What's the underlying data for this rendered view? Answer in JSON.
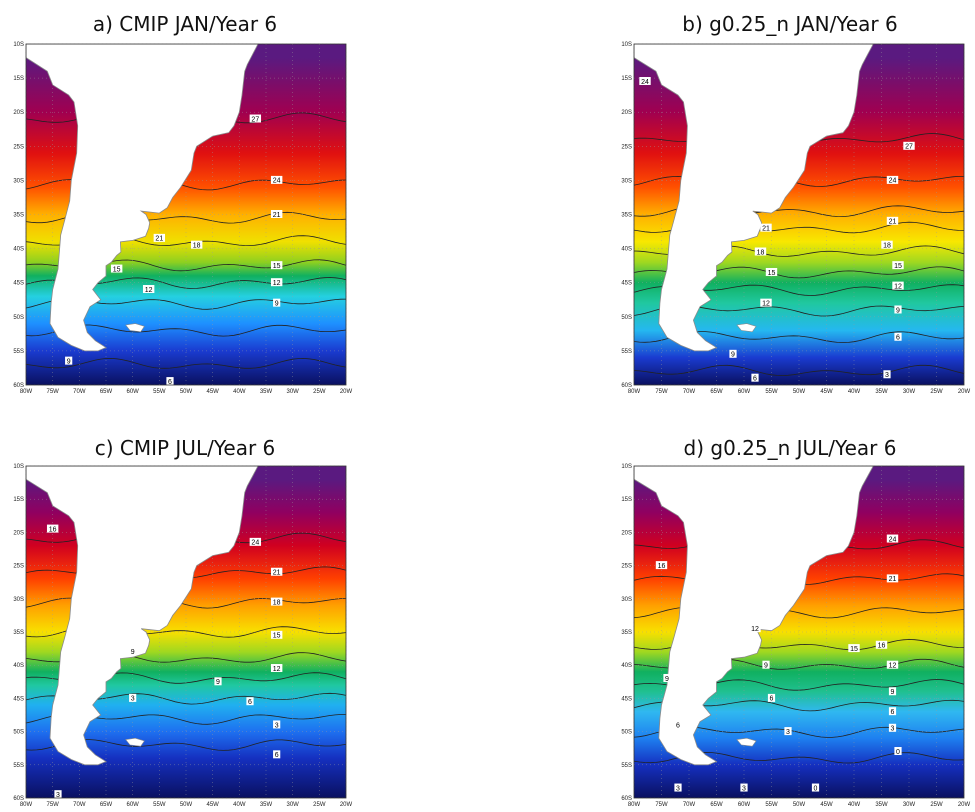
{
  "figure": {
    "panels": [
      {
        "id": "a",
        "title": "a) CMIP JAN/Year 6",
        "month": "JAN",
        "lat_range": [
          -60,
          -10
        ],
        "lon_range": [
          -80,
          -20
        ],
        "color_stops": [
          [
            -60,
            "#0a1060"
          ],
          [
            -55,
            "#1a3bd0"
          ],
          [
            -51,
            "#1e90ff"
          ],
          [
            -47,
            "#25d0e0"
          ],
          [
            -44,
            "#10b060"
          ],
          [
            -42,
            "#8ed020"
          ],
          [
            -39,
            "#f0e000"
          ],
          [
            -35,
            "#ffb000"
          ],
          [
            -31,
            "#ff5000"
          ],
          [
            -26,
            "#e01010"
          ],
          [
            -20,
            "#a00050"
          ],
          [
            -12,
            "#5a1a80"
          ]
        ],
        "contour_lats": [
          -57,
          -52,
          -48,
          -45,
          -42.5,
          -39,
          -35.5,
          -30.5,
          -21
        ],
        "contour_labels": [
          {
            "t": "6",
            "lon": -53,
            "lat": -59.5
          },
          {
            "t": "9",
            "lon": -72,
            "lat": -56.5
          },
          {
            "t": "9",
            "lon": -33,
            "lat": -48
          },
          {
            "t": "12",
            "lon": -57,
            "lat": -46
          },
          {
            "t": "12",
            "lon": -33,
            "lat": -45
          },
          {
            "t": "15",
            "lon": -63,
            "lat": -43
          },
          {
            "t": "15",
            "lon": -33,
            "lat": -42.5
          },
          {
            "t": "18",
            "lon": -48,
            "lat": -39.5
          },
          {
            "t": "21",
            "lon": -55,
            "lat": -38.5
          },
          {
            "t": "21",
            "lon": -33,
            "lat": -35
          },
          {
            "t": "24",
            "lon": -33,
            "lat": -30
          },
          {
            "t": "27",
            "lon": -37,
            "lat": -21
          }
        ]
      },
      {
        "id": "b",
        "title": "b) g0.25_n JAN/Year 6",
        "month": "JAN",
        "lat_range": [
          -60,
          -10
        ],
        "lon_range": [
          -80,
          -20
        ],
        "color_stops": [
          [
            -60,
            "#0a1060"
          ],
          [
            -56,
            "#1a3bd0"
          ],
          [
            -52,
            "#25b8f0"
          ],
          [
            -48,
            "#20c8a0"
          ],
          [
            -45,
            "#10b060"
          ],
          [
            -42,
            "#a0d820"
          ],
          [
            -39,
            "#f8e800"
          ],
          [
            -35,
            "#ffb000"
          ],
          [
            -31,
            "#ff5000"
          ],
          [
            -26,
            "#e01010"
          ],
          [
            -20,
            "#a00050"
          ],
          [
            -12,
            "#5a1a80"
          ]
        ],
        "contour_lats": [
          -58,
          -53,
          -49,
          -46,
          -43.5,
          -40.5,
          -37,
          -34.5,
          -30,
          -24
        ],
        "contour_labels": [
          {
            "t": "3",
            "lon": -34,
            "lat": -58.5
          },
          {
            "t": "6",
            "lon": -58,
            "lat": -59
          },
          {
            "t": "6",
            "lon": -32,
            "lat": -53
          },
          {
            "t": "9",
            "lon": -62,
            "lat": -55.5
          },
          {
            "t": "9",
            "lon": -32,
            "lat": -49
          },
          {
            "t": "12",
            "lon": -56,
            "lat": -48
          },
          {
            "t": "12",
            "lon": -32,
            "lat": -45.5
          },
          {
            "t": "15",
            "lon": -55,
            "lat": -43.5
          },
          {
            "t": "15",
            "lon": -32,
            "lat": -42.5
          },
          {
            "t": "18",
            "lon": -57,
            "lat": -40.5
          },
          {
            "t": "18",
            "lon": -34,
            "lat": -39.5
          },
          {
            "t": "21",
            "lon": -56,
            "lat": -37
          },
          {
            "t": "21",
            "lon": -33,
            "lat": -36
          },
          {
            "t": "24",
            "lon": -33,
            "lat": -30
          },
          {
            "t": "24",
            "lon": -78,
            "lat": -15.5
          },
          {
            "t": "27",
            "lon": -30,
            "lat": -25
          }
        ]
      },
      {
        "id": "c",
        "title": "c) CMIP JUL/Year 6",
        "month": "JUL",
        "lat_range": [
          -60,
          -10
        ],
        "lon_range": [
          -80,
          -20
        ],
        "color_stops": [
          [
            -60,
            "#0a1060"
          ],
          [
            -54,
            "#1530c0"
          ],
          [
            -50,
            "#1e70f0"
          ],
          [
            -46,
            "#20b0f0"
          ],
          [
            -43,
            "#20c8a0"
          ],
          [
            -41,
            "#10b060"
          ],
          [
            -38,
            "#a0d820"
          ],
          [
            -35,
            "#f8e000"
          ],
          [
            -31,
            "#ffa000"
          ],
          [
            -27,
            "#ff4000"
          ],
          [
            -22,
            "#d00020"
          ],
          [
            -17,
            "#900060"
          ],
          [
            -12,
            "#5a1a80"
          ]
        ],
        "contour_lats": [
          -52,
          -48,
          -45,
          -42,
          -39,
          -35,
          -30.5,
          -26,
          -21
        ],
        "contour_labels": [
          {
            "t": "3",
            "lon": -74,
            "lat": -59.5
          },
          {
            "t": "3",
            "lon": -33,
            "lat": -49
          },
          {
            "t": "3",
            "lon": -60,
            "lat": -45
          },
          {
            "t": "6",
            "lon": -33,
            "lat": -53.5
          },
          {
            "t": "6",
            "lon": -38,
            "lat": -45.5
          },
          {
            "t": "9",
            "lon": -44,
            "lat": -42.5
          },
          {
            "t": "9",
            "lon": -60,
            "lat": -38
          },
          {
            "t": "12",
            "lon": -33,
            "lat": -40.5
          },
          {
            "t": "15",
            "lon": -33,
            "lat": -35.5
          },
          {
            "t": "16",
            "lon": -75,
            "lat": -19.5
          },
          {
            "t": "18",
            "lon": -33,
            "lat": -30.5
          },
          {
            "t": "21",
            "lon": -33,
            "lat": -26
          },
          {
            "t": "24",
            "lon": -37,
            "lat": -21.5
          }
        ]
      },
      {
        "id": "d",
        "title": "d) g0.25_n JUL/Year 6",
        "month": "JUL",
        "lat_range": [
          -60,
          -10
        ],
        "lon_range": [
          -80,
          -20
        ],
        "color_stops": [
          [
            -60,
            "#0a1060"
          ],
          [
            -55,
            "#1530c0"
          ],
          [
            -51,
            "#1e80f0"
          ],
          [
            -47,
            "#30b8f0"
          ],
          [
            -44,
            "#20c090"
          ],
          [
            -41,
            "#10b060"
          ],
          [
            -38,
            "#a0d820"
          ],
          [
            -35,
            "#f8e000"
          ],
          [
            -31,
            "#ffa000"
          ],
          [
            -27,
            "#ff4000"
          ],
          [
            -22,
            "#d00020"
          ],
          [
            -17,
            "#900060"
          ],
          [
            -12,
            "#5a1a80"
          ]
        ],
        "contour_lats": [
          -54,
          -50,
          -46,
          -43,
          -40,
          -37,
          -32,
          -27,
          -22
        ],
        "contour_labels": [
          {
            "t": "3",
            "lon": -72,
            "lat": -58.5
          },
          {
            "t": "3",
            "lon": -60,
            "lat": -58.5
          },
          {
            "t": "3",
            "lon": -52,
            "lat": -50
          },
          {
            "t": "3",
            "lon": -33,
            "lat": -49.5
          },
          {
            "t": "0",
            "lon": -47,
            "lat": -58.5
          },
          {
            "t": "0",
            "lon": -32,
            "lat": -53
          },
          {
            "t": "6",
            "lon": -55,
            "lat": -45
          },
          {
            "t": "6",
            "lon": -72,
            "lat": -49
          },
          {
            "t": "6",
            "lon": -33,
            "lat": -47
          },
          {
            "t": "9",
            "lon": -74,
            "lat": -42
          },
          {
            "t": "9",
            "lon": -56,
            "lat": -40
          },
          {
            "t": "9",
            "lon": -33,
            "lat": -44
          },
          {
            "t": "12",
            "lon": -58,
            "lat": -34.5
          },
          {
            "t": "12",
            "lon": -33,
            "lat": -40
          },
          {
            "t": "15",
            "lon": -40,
            "lat": -37.5
          },
          {
            "t": "16",
            "lon": -35,
            "lat": -37
          },
          {
            "t": "16",
            "lon": -75,
            "lat": -25
          },
          {
            "t": "21",
            "lon": -33,
            "lat": -27
          },
          {
            "t": "24",
            "lon": -33,
            "lat": -21
          }
        ]
      }
    ],
    "lat_ticks": [
      "10S",
      "15S",
      "20S",
      "25S",
      "30S",
      "35S",
      "40S",
      "45S",
      "50S",
      "55S",
      "60S"
    ],
    "lon_ticks": [
      "80W",
      "75W",
      "70W",
      "65W",
      "60W",
      "55W",
      "50W",
      "45W",
      "40W",
      "35W",
      "30W",
      "25W",
      "20W"
    ],
    "colors": {
      "land": "#ffffff",
      "coast": "#8a8a8a",
      "contour": "#222222",
      "grid": "#9a9a9a"
    }
  }
}
